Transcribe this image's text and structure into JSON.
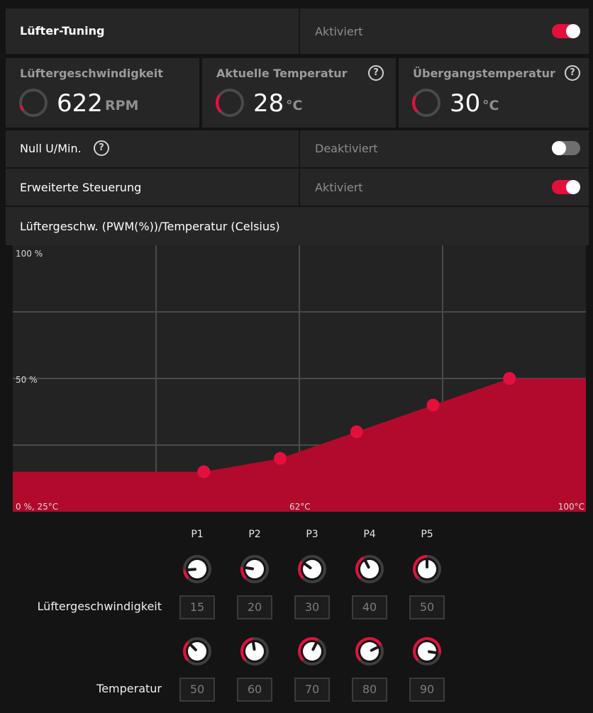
{
  "header": {
    "title": "Lüfter-Tuning",
    "status": "Aktiviert",
    "enabled": true
  },
  "stats": [
    {
      "label": "Lüftergeschwindigkeit",
      "value": "622",
      "unit": "RPM",
      "has_help": false
    },
    {
      "label": "Aktuelle Temperatur",
      "value": "28",
      "unit": "°C",
      "has_help": true
    },
    {
      "label": "Übergangstemperatur",
      "value": "30",
      "unit": "°C",
      "has_help": true
    }
  ],
  "zero_rpm": {
    "label": "Null U/Min.",
    "status": "Deaktiviert",
    "enabled": false
  },
  "advanced": {
    "label": "Erweiterte Steuerung",
    "status": "Aktiviert",
    "enabled": true
  },
  "chart": {
    "heading": "Lüftergeschw. (PWM(%))/Temperatur (Celsius)",
    "y_top_label": "100 %",
    "y_mid_label": "50 %",
    "origin_label": "0 %, 25°C",
    "x_mid_label": "62°C",
    "x_end_label": "100°C"
  },
  "chart_data": {
    "type": "area",
    "x_unit": "°C",
    "y_unit": "%",
    "xlim": [
      25,
      100
    ],
    "ylim": [
      0,
      100
    ],
    "grid": true,
    "series": [
      {
        "x": [
          25,
          50,
          60,
          70,
          80,
          90,
          100
        ],
        "y": [
          15,
          15,
          20,
          30,
          40,
          50,
          50
        ]
      }
    ],
    "points": [
      {
        "x": 50,
        "y": 15
      },
      {
        "x": 60,
        "y": 20
      },
      {
        "x": 70,
        "y": 30
      },
      {
        "x": 80,
        "y": 40
      },
      {
        "x": 90,
        "y": 50
      }
    ],
    "fill_color": "#b20a2c",
    "point_color": "#e4103c"
  },
  "controls": {
    "points": [
      "P1",
      "P2",
      "P3",
      "P4",
      "P5"
    ],
    "speed_label": "Lüftergeschwindigkeit",
    "speed_values": [
      "15",
      "20",
      "30",
      "40",
      "50"
    ],
    "temp_label": "Temperatur",
    "temp_values": [
      "50",
      "60",
      "70",
      "80",
      "90"
    ]
  },
  "colors": {
    "accent": "#e4103c",
    "panel": "#262626",
    "background": "#141414"
  }
}
